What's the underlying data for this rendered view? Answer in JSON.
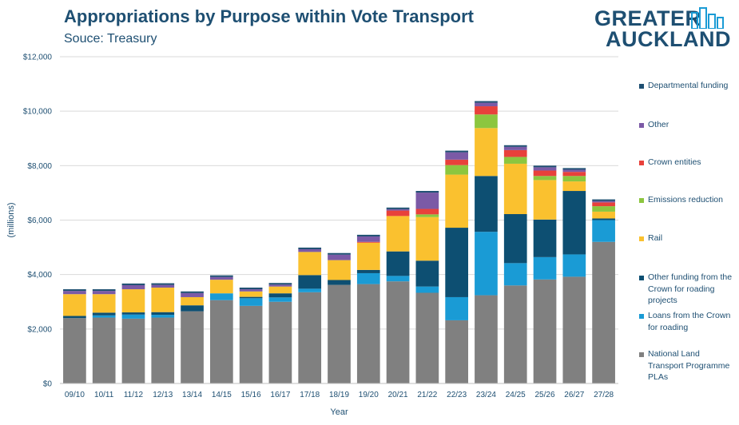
{
  "header": {
    "title": "Appropriations by Purpose within Vote Transport",
    "subtitle": "Souce: Treasury"
  },
  "logo": {
    "line1": "GREATER",
    "line2": "AUCKLAND"
  },
  "chart_data": {
    "type": "bar",
    "stacked": true,
    "title": "Appropriations by Purpose within Vote Transport",
    "subtitle": "Souce: Treasury",
    "xlabel": "Year",
    "ylabel": "(millions)",
    "ylim": [
      0,
      12000
    ],
    "yticks": [
      0,
      2000,
      4000,
      6000,
      8000,
      10000,
      12000
    ],
    "ytick_labels": [
      "$0",
      "$2,000",
      "$4,000",
      "$6,000",
      "$8,000",
      "$10,000",
      "$12,000"
    ],
    "grid": true,
    "legend_position": "right",
    "categories": [
      "09/10",
      "10/11",
      "11/12",
      "12/13",
      "13/14",
      "14/15",
      "15/16",
      "16/17",
      "17/18",
      "18/19",
      "19/20",
      "20/21",
      "21/22",
      "22/23",
      "23/24",
      "24/25",
      "25/26",
      "26/27",
      "27/28"
    ],
    "series": [
      {
        "name": "National Land Transport Programme PLAs",
        "color": "#808080",
        "values": [
          2400,
          2420,
          2380,
          2420,
          2650,
          3060,
          2850,
          3000,
          3350,
          3620,
          3650,
          3750,
          3330,
          2320,
          3240,
          3600,
          3820,
          3920,
          5200
        ]
      },
      {
        "name": "Loans from the Crown for roading",
        "color": "#1a9bd5",
        "values": [
          0,
          80,
          150,
          100,
          0,
          250,
          280,
          160,
          130,
          0,
          400,
          200,
          230,
          850,
          2330,
          820,
          820,
          820,
          800
        ]
      },
      {
        "name": "Other funding from the Crown for roading projects",
        "color": "#0d4f72",
        "values": [
          80,
          100,
          80,
          100,
          220,
          0,
          50,
          150,
          500,
          180,
          120,
          900,
          950,
          2550,
          2050,
          1800,
          1380,
          2330,
          60
        ]
      },
      {
        "name": "Rail",
        "color": "#fac12f",
        "values": [
          800,
          680,
          850,
          900,
          300,
          500,
          200,
          250,
          850,
          730,
          1000,
          1300,
          1600,
          1950,
          1760,
          1850,
          1450,
          350,
          250
        ]
      },
      {
        "name": "Emissions reduction",
        "color": "#8cc63f",
        "values": [
          0,
          0,
          0,
          0,
          0,
          0,
          0,
          0,
          0,
          0,
          0,
          0,
          100,
          350,
          500,
          250,
          150,
          200,
          200
        ]
      },
      {
        "name": "Crown entities",
        "color": "#e8413b",
        "values": [
          0,
          0,
          0,
          0,
          0,
          0,
          0,
          0,
          0,
          0,
          30,
          200,
          200,
          200,
          300,
          250,
          200,
          150,
          140
        ]
      },
      {
        "name": "Other",
        "color": "#7b5aa6",
        "values": [
          120,
          120,
          150,
          100,
          150,
          100,
          80,
          70,
          100,
          200,
          200,
          50,
          600,
          270,
          130,
          120,
          120,
          80,
          50
        ]
      },
      {
        "name": "Departmental funding",
        "color": "#1e4f72",
        "values": [
          60,
          60,
          60,
          60,
          60,
          60,
          60,
          60,
          60,
          60,
          60,
          60,
          60,
          60,
          60,
          60,
          60,
          60,
          60
        ]
      }
    ]
  }
}
